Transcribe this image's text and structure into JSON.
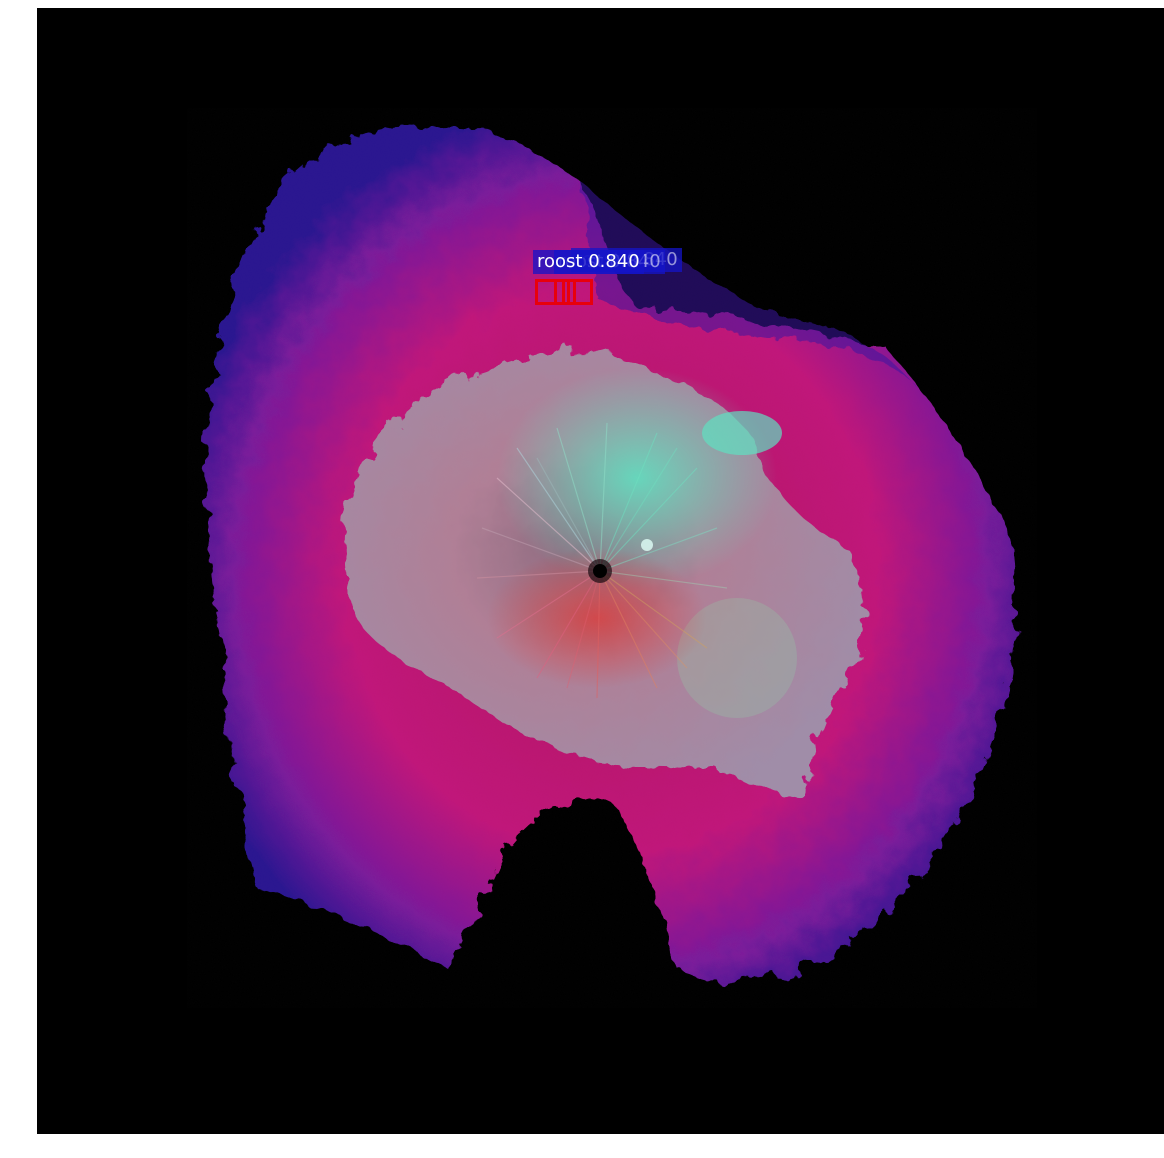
{
  "image": {
    "description_colors": {
      "background": "#000000",
      "outer_echo": "#c0137a",
      "outer_echo_edge": "#3a1aa0",
      "inner_echo": "#9a8fa6",
      "center_cyan": "#58d6b0",
      "box_color": "#e8000b",
      "label_bg": "#1414c8"
    }
  },
  "detections": [
    {
      "label": "roost 0.840"
    },
    {
      "label": "roost 0.840"
    },
    {
      "label": "roost 0.840"
    }
  ]
}
